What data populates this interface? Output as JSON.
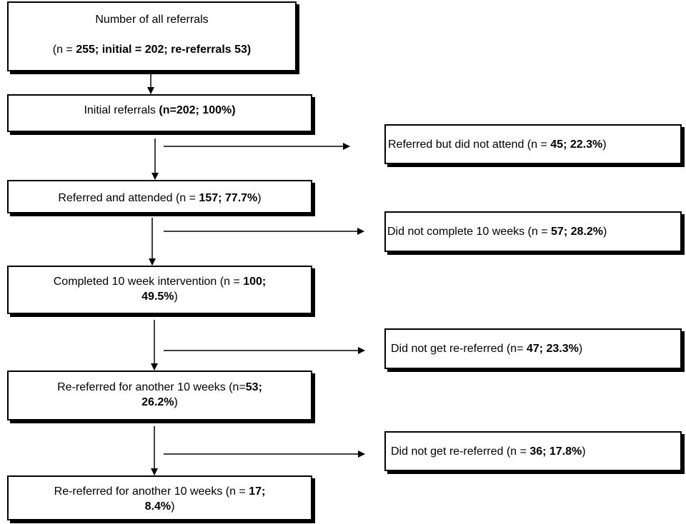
{
  "boxes": {
    "all": {
      "line1": "Number of all referrals",
      "l2_pre": "(n = ",
      "l2_bold": "255; initial = 202; re-referrals 53)"
    },
    "initial": {
      "pre": "Initial referrals ",
      "bold": "(n=202; 100%)"
    },
    "attended": {
      "pre": "Referred and attended (n = ",
      "bold": "157; 77.7%",
      "post": ")"
    },
    "completed": {
      "pre": "Completed 10 week intervention (n = ",
      "bold1": "100;",
      "bold2": "49.5%",
      "post": ")"
    },
    "rereferred1": {
      "pre": "Re-referred for another 10 weeks (n=",
      "bold1": "53;",
      "bold2": "26.2%",
      "post": ")"
    },
    "rereferred2": {
      "pre": "Re-referred for another 10 weeks (n = ",
      "bold1": "17;",
      "bold2": "8.4%",
      "post": ")"
    },
    "no_attend": {
      "pre": "Referred but did not attend (n = ",
      "bold": "45; 22.3%",
      "post": ")"
    },
    "no_complete": {
      "pre": "Did not complete 10 weeks (n = ",
      "bold": "57; 28.2%",
      "post": ")"
    },
    "no_reref1": {
      "pre": "Did not get re-referred (n= ",
      "bold": "47; 23.3%",
      "post": ")"
    },
    "no_reref2": {
      "pre": "Did not get re-referred (n = ",
      "bold": "36; 17.8%",
      "post": ")"
    }
  }
}
